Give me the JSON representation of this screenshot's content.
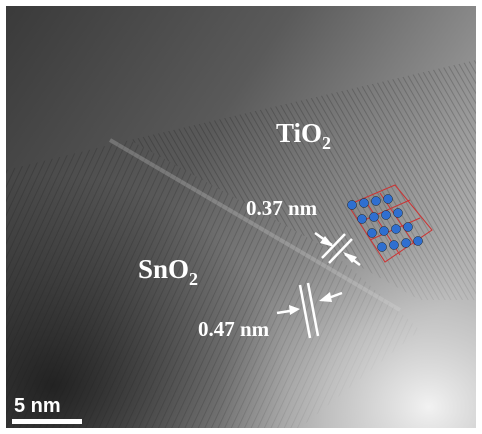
{
  "labels": {
    "tio2": {
      "base": "TiO",
      "sub": "2"
    },
    "sno2": {
      "base": "SnO",
      "sub": "2"
    },
    "spacing_tio2": "0.37 nm",
    "spacing_sno2": "0.47 nm",
    "scale_bar": "5 nm"
  }
}
